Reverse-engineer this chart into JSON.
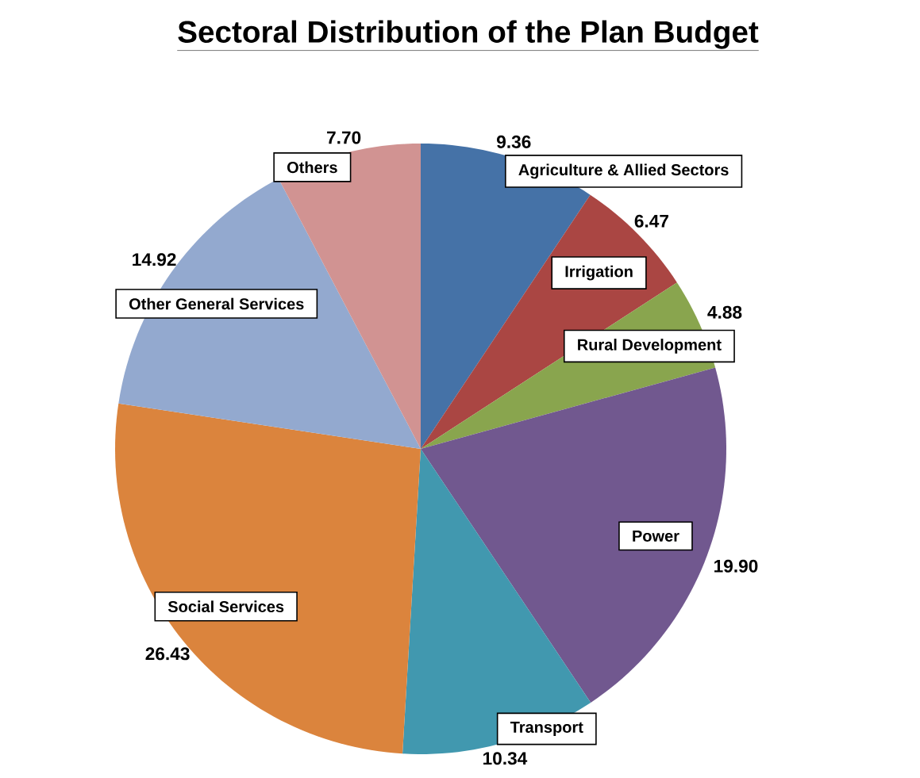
{
  "chart_data": {
    "type": "pie",
    "title": "Sectoral Distribution of the Plan Budget",
    "categories": [
      "Agriculture & Allied Sectors",
      "Irrigation",
      "Rural Development",
      "Power",
      "Transport",
      "Social Services",
      "Other General Services",
      "Others"
    ],
    "values": [
      9.36,
      6.47,
      4.88,
      19.9,
      10.34,
      26.43,
      14.92,
      7.7
    ],
    "value_labels": [
      "9.36",
      "6.47",
      "4.88",
      "19.90",
      "10.34",
      "26.43",
      "14.92",
      "7.70"
    ],
    "colors": [
      "#4572a7",
      "#aa4643",
      "#89a54e",
      "#71588f",
      "#4198af",
      "#db843d",
      "#93a9cf",
      "#d19392"
    ]
  }
}
